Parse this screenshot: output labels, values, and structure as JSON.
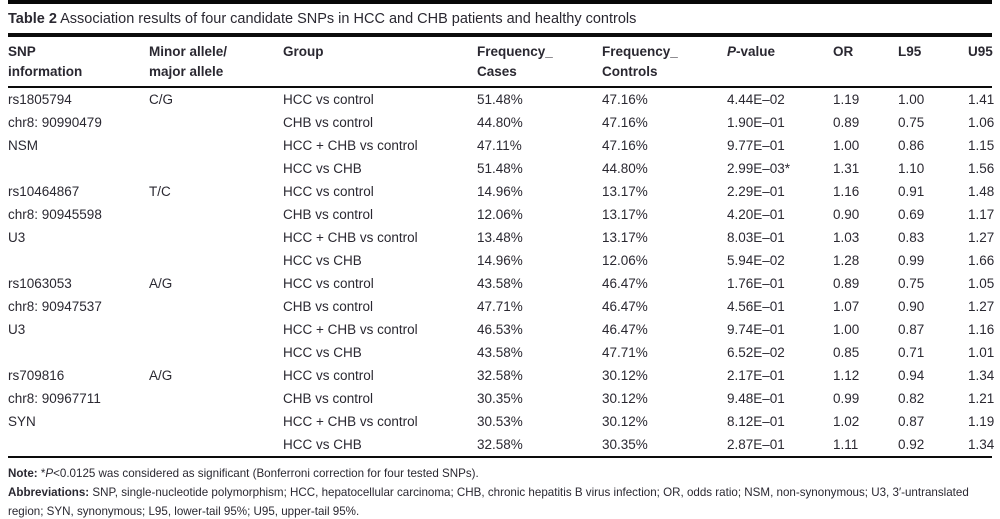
{
  "title": {
    "label": "Table 2",
    "text": "Association results of four candidate SNPs in HCC and CHB patients and healthy controls"
  },
  "columns": [
    {
      "line1": "SNP",
      "line2": "information"
    },
    {
      "line1": "Minor allele/",
      "line2": "major allele"
    },
    {
      "line1": "Group",
      "line2": ""
    },
    {
      "line1": "Frequency_",
      "line2": "Cases"
    },
    {
      "line1": "Frequency_",
      "line2": "Controls"
    },
    {
      "p_italic": "P",
      "p_rest": "-value",
      "line2": ""
    },
    {
      "line1": "OR",
      "line2": ""
    },
    {
      "line1": "L95",
      "line2": ""
    },
    {
      "line1": "U95",
      "line2": ""
    }
  ],
  "snps": [
    {
      "id": "rs1805794",
      "position": "chr8: 90990479",
      "function_label": "NSM",
      "allele": "C/G",
      "rows": [
        {
          "group": "HCC vs control",
          "freq_cases": "51.48%",
          "freq_controls": "47.16%",
          "p": "4.44E–02",
          "or": "1.19",
          "l95": "1.00",
          "u95": "1.41"
        },
        {
          "group": "CHB vs control",
          "freq_cases": "44.80%",
          "freq_controls": "47.16%",
          "p": "1.90E–01",
          "or": "0.89",
          "l95": "0.75",
          "u95": "1.06"
        },
        {
          "group": "HCC + CHB vs control",
          "freq_cases": "47.11%",
          "freq_controls": "47.16%",
          "p": "9.77E–01",
          "or": "1.00",
          "l95": "0.86",
          "u95": "1.15"
        },
        {
          "group": "HCC vs CHB",
          "freq_cases": "51.48%",
          "freq_controls": "44.80%",
          "p": "2.99E–03*",
          "or": "1.31",
          "l95": "1.10",
          "u95": "1.56"
        }
      ]
    },
    {
      "id": "rs10464867",
      "position": "chr8: 90945598",
      "function_label": "U3",
      "allele": "T/C",
      "rows": [
        {
          "group": "HCC vs control",
          "freq_cases": "14.96%",
          "freq_controls": "13.17%",
          "p": "2.29E–01",
          "or": "1.16",
          "l95": "0.91",
          "u95": "1.48"
        },
        {
          "group": "CHB vs control",
          "freq_cases": "12.06%",
          "freq_controls": "13.17%",
          "p": "4.20E–01",
          "or": "0.90",
          "l95": "0.69",
          "u95": "1.17"
        },
        {
          "group": "HCC + CHB vs control",
          "freq_cases": "13.48%",
          "freq_controls": "13.17%",
          "p": "8.03E–01",
          "or": "1.03",
          "l95": "0.83",
          "u95": "1.27"
        },
        {
          "group": "HCC vs CHB",
          "freq_cases": "14.96%",
          "freq_controls": "12.06%",
          "p": "5.94E–02",
          "or": "1.28",
          "l95": "0.99",
          "u95": "1.66"
        }
      ]
    },
    {
      "id": "rs1063053",
      "position": "chr8: 90947537",
      "function_label": "U3",
      "allele": "A/G",
      "rows": [
        {
          "group": "HCC vs control",
          "freq_cases": "43.58%",
          "freq_controls": "46.47%",
          "p": "1.76E–01",
          "or": "0.89",
          "l95": "0.75",
          "u95": "1.05"
        },
        {
          "group": "CHB vs control",
          "freq_cases": "47.71%",
          "freq_controls": "46.47%",
          "p": "4.56E–01",
          "or": "1.07",
          "l95": "0.90",
          "u95": "1.27"
        },
        {
          "group": "HCC + CHB vs control",
          "freq_cases": "46.53%",
          "freq_controls": "46.47%",
          "p": "9.74E–01",
          "or": "1.00",
          "l95": "0.87",
          "u95": "1.16"
        },
        {
          "group": "HCC vs CHB",
          "freq_cases": "43.58%",
          "freq_controls": "47.71%",
          "p": "6.52E–02",
          "or": "0.85",
          "l95": "0.71",
          "u95": "1.01"
        }
      ]
    },
    {
      "id": "rs709816",
      "position": "chr8: 90967711",
      "function_label": "SYN",
      "allele": "A/G",
      "rows": [
        {
          "group": "HCC vs control",
          "freq_cases": "32.58%",
          "freq_controls": "30.12%",
          "p": "2.17E–01",
          "or": "1.12",
          "l95": "0.94",
          "u95": "1.34"
        },
        {
          "group": "CHB vs control",
          "freq_cases": "30.35%",
          "freq_controls": "30.12%",
          "p": "9.48E–01",
          "or": "0.99",
          "l95": "0.82",
          "u95": "1.21"
        },
        {
          "group": "HCC + CHB vs control",
          "freq_cases": "30.53%",
          "freq_controls": "30.12%",
          "p": "8.12E–01",
          "or": "1.02",
          "l95": "0.87",
          "u95": "1.19"
        },
        {
          "group": "HCC vs CHB",
          "freq_cases": "32.58%",
          "freq_controls": "30.35%",
          "p": "2.87E–01",
          "or": "1.11",
          "l95": "0.92",
          "u95": "1.34"
        }
      ]
    }
  ],
  "note": {
    "label": "Note:",
    "star": "*",
    "p": "P",
    "rest": "<0.0125 was considered as significant (Bonferroni correction for four tested SNPs)."
  },
  "abbreviations": {
    "label": "Abbreviations:",
    "text": "SNP, single-nucleotide polymorphism; HCC, hepatocellular carcinoma; CHB, chronic hepatitis B virus infection; OR, odds ratio; NSM, non-synonymous; U3, 3′-untranslated region; SYN, synonymous; L95, lower-tail 95%; U95, upper-tail 95%."
  }
}
